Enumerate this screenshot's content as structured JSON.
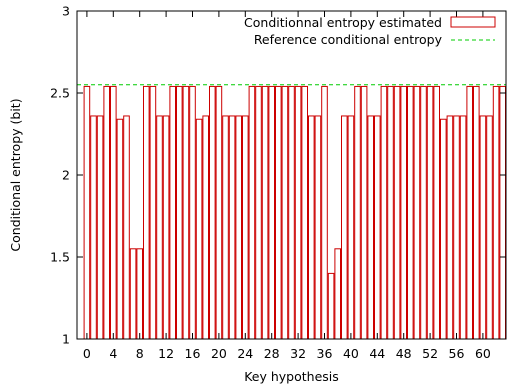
{
  "chart_data": {
    "type": "bar",
    "xlabel": "Key hypothesis",
    "ylabel": "Conditional entropy (bit)",
    "ylim": [
      1,
      3
    ],
    "xlim": [
      -1.5,
      63.5
    ],
    "yticks": [
      "1",
      "1.5",
      "2",
      "2.5",
      "3"
    ],
    "xticks": [
      "0",
      "4",
      "8",
      "12",
      "16",
      "20",
      "24",
      "28",
      "32",
      "36",
      "40",
      "44",
      "48",
      "52",
      "56",
      "60"
    ],
    "legend_position": "top-right",
    "grid": false,
    "x": [
      0,
      1,
      2,
      3,
      4,
      5,
      6,
      7,
      8,
      9,
      10,
      11,
      12,
      13,
      14,
      15,
      16,
      17,
      18,
      19,
      20,
      21,
      22,
      23,
      24,
      25,
      26,
      27,
      28,
      29,
      30,
      31,
      32,
      33,
      34,
      35,
      36,
      37,
      38,
      39,
      40,
      41,
      42,
      43,
      44,
      45,
      46,
      47,
      48,
      49,
      50,
      51,
      52,
      53,
      54,
      55,
      56,
      57,
      58,
      59,
      60,
      61,
      62,
      63
    ],
    "series": [
      {
        "name": "Conditionnal entropy estimated",
        "style": "bars",
        "color": "#cc0000",
        "values": [
          2.54,
          2.36,
          2.36,
          2.54,
          2.54,
          2.34,
          2.36,
          1.55,
          1.55,
          2.54,
          2.54,
          2.36,
          2.36,
          2.54,
          2.54,
          2.54,
          2.54,
          2.34,
          2.36,
          2.54,
          2.54,
          2.36,
          2.36,
          2.36,
          2.36,
          2.54,
          2.54,
          2.54,
          2.54,
          2.54,
          2.54,
          2.54,
          2.54,
          2.54,
          2.36,
          2.36,
          2.54,
          1.4,
          1.55,
          2.36,
          2.36,
          2.54,
          2.54,
          2.36,
          2.36,
          2.54,
          2.54,
          2.54,
          2.54,
          2.54,
          2.54,
          2.54,
          2.54,
          2.54,
          2.34,
          2.36,
          2.36,
          2.36,
          2.54,
          2.54,
          2.36,
          2.36,
          2.54,
          2.54
        ]
      },
      {
        "name": "Reference conditional entropy",
        "style": "dashed-line",
        "color": "#00cc00",
        "value": 2.55
      }
    ]
  }
}
